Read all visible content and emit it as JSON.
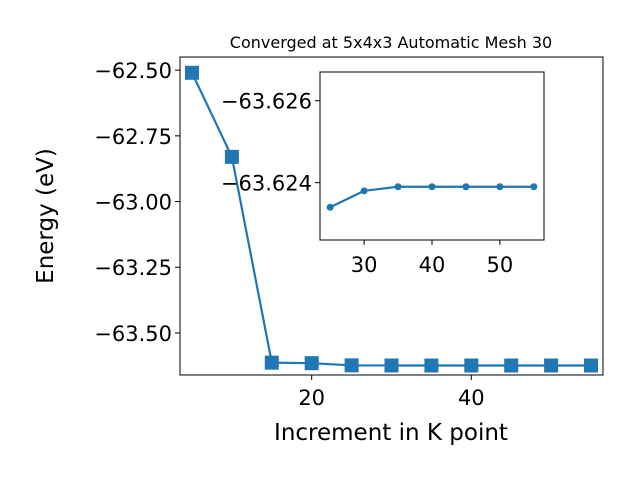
{
  "chart_data": [
    {
      "type": "line",
      "title": "Converged at 5x4x3 Automatic Mesh 30",
      "xlabel": "Increment in K point",
      "ylabel": "Energy (eV)",
      "xlim": [
        3.5,
        56.5
      ],
      "ylim": [
        -63.66,
        -62.45
      ],
      "xticks": [
        20,
        40
      ],
      "yticks": [
        -62.5,
        -62.75,
        -63.0,
        -63.25,
        -63.5
      ],
      "ytick_labels": [
        "−62.50",
        "−62.75",
        "−63.00",
        "−63.25",
        "−63.50"
      ],
      "grid": false,
      "marker": "square",
      "color": "#1f77b4",
      "x": [
        5,
        10,
        15,
        20,
        25,
        30,
        35,
        40,
        45,
        50,
        55
      ],
      "y": [
        -62.51,
        -62.83,
        -63.613,
        -63.615,
        -63.6234,
        -63.6238,
        -63.6239,
        -63.6239,
        -63.6239,
        -63.6239,
        -63.6239
      ]
    },
    {
      "type": "line",
      "title": "",
      "xlim": [
        23.5,
        56.5
      ],
      "ylim": [
        -63.6226,
        -63.6267
      ],
      "xticks": [
        30,
        40,
        50
      ],
      "yticks": [
        -63.626,
        -63.624
      ],
      "ytick_labels": [
        "−63.626",
        "−63.624"
      ],
      "grid": false,
      "marker": "circle",
      "color": "#1f77b4",
      "x": [
        25,
        30,
        35,
        40,
        45,
        50,
        55
      ],
      "y": [
        -63.6234,
        -63.6238,
        -63.6239,
        -63.6239,
        -63.6239,
        -63.6239,
        -63.6239
      ]
    }
  ]
}
